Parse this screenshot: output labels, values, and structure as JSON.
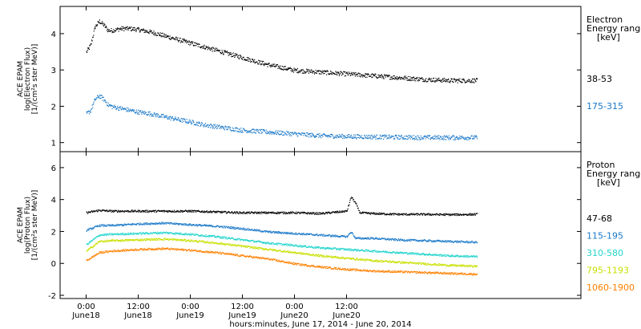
{
  "chart_data": [
    {
      "type": "scatter",
      "panel": "top",
      "ylabel_lines": [
        "ACE EPAM",
        "log(Electron Flux)",
        "[1/(cm²s ster MeV)]"
      ],
      "ylim": [
        0.75,
        4.75
      ],
      "yticks": [
        1,
        2,
        3,
        4
      ],
      "legend_title": [
        "Electron",
        "Energy range",
        "[keV]"
      ],
      "series": [
        {
          "name": "38-53",
          "color": "#000000",
          "x": [
            0,
            1,
            2,
            3,
            4,
            5,
            6,
            8,
            10,
            12,
            15,
            18,
            21,
            24,
            27,
            30,
            36,
            42,
            48,
            54,
            60,
            66,
            72,
            78,
            84,
            90
          ],
          "y": [
            3.5,
            3.7,
            4.2,
            4.35,
            4.25,
            4.1,
            4.1,
            4.15,
            4.15,
            4.12,
            4.05,
            3.95,
            3.85,
            3.75,
            3.65,
            3.55,
            3.35,
            3.15,
            3.0,
            2.95,
            2.9,
            2.85,
            2.8,
            2.75,
            2.72,
            2.72
          ]
        },
        {
          "name": "175-315",
          "color": "#1a78c8",
          "x": [
            0,
            1,
            2,
            3,
            4,
            5,
            6,
            8,
            10,
            12,
            15,
            18,
            21,
            24,
            27,
            30,
            36,
            42,
            48,
            54,
            60,
            66,
            72,
            78,
            84,
            90
          ],
          "y": [
            1.8,
            1.9,
            2.2,
            2.3,
            2.2,
            2.05,
            2.0,
            1.95,
            1.9,
            1.85,
            1.8,
            1.72,
            1.65,
            1.58,
            1.5,
            1.45,
            1.35,
            1.3,
            1.25,
            1.2,
            1.18,
            1.17,
            1.16,
            1.15,
            1.15,
            1.15
          ]
        }
      ]
    },
    {
      "type": "scatter",
      "panel": "bottom",
      "ylabel_lines": [
        "ACE EPAM",
        "log(Proton Flux)",
        "[1/(cm²s ster MeV)]"
      ],
      "ylim": [
        -2.2,
        7.0
      ],
      "yticks": [
        -2,
        0,
        2,
        4,
        6
      ],
      "legend_title": [
        "Proton",
        "Energy range",
        "[keV]"
      ],
      "series": [
        {
          "name": "47-68",
          "color": "#000000",
          "x": [
            0,
            3,
            6,
            12,
            18,
            24,
            30,
            36,
            42,
            48,
            54,
            60,
            61,
            62,
            63,
            66,
            72,
            78,
            84,
            90
          ],
          "y": [
            3.2,
            3.35,
            3.3,
            3.3,
            3.3,
            3.3,
            3.25,
            3.2,
            3.2,
            3.2,
            3.15,
            3.3,
            4.2,
            3.8,
            3.2,
            3.15,
            3.1,
            3.1,
            3.08,
            3.1
          ]
        },
        {
          "name": "115-195",
          "color": "#1a78c8",
          "x": [
            0,
            3,
            6,
            12,
            18,
            24,
            30,
            36,
            42,
            48,
            54,
            60,
            61,
            62,
            63,
            66,
            72,
            78,
            84,
            90
          ],
          "y": [
            2.1,
            2.4,
            2.4,
            2.5,
            2.55,
            2.45,
            2.35,
            2.2,
            2.0,
            1.9,
            1.8,
            1.7,
            2.0,
            1.6,
            1.6,
            1.6,
            1.5,
            1.45,
            1.4,
            1.35
          ]
        },
        {
          "name": "310-580",
          "color": "#22d4cc",
          "x": [
            0,
            3,
            6,
            12,
            18,
            24,
            30,
            36,
            42,
            48,
            54,
            60,
            66,
            72,
            78,
            84,
            90
          ],
          "y": [
            1.2,
            1.8,
            1.85,
            1.9,
            1.95,
            1.85,
            1.7,
            1.5,
            1.3,
            1.15,
            1.0,
            0.9,
            0.8,
            0.7,
            0.6,
            0.5,
            0.45
          ]
        },
        {
          "name": "795-1193",
          "color": "#c8e000",
          "x": [
            0,
            3,
            6,
            12,
            18,
            24,
            30,
            36,
            42,
            48,
            54,
            60,
            66,
            72,
            78,
            84,
            90
          ],
          "y": [
            0.8,
            1.4,
            1.45,
            1.5,
            1.55,
            1.45,
            1.3,
            1.1,
            0.9,
            0.7,
            0.5,
            0.35,
            0.2,
            0.1,
            0.0,
            -0.1,
            -0.15
          ]
        },
        {
          "name": "1060-1900",
          "color": "#ff8000",
          "x": [
            0,
            3,
            6,
            12,
            18,
            24,
            30,
            36,
            42,
            48,
            54,
            60,
            66,
            72,
            78,
            84,
            90
          ],
          "y": [
            0.2,
            0.7,
            0.8,
            0.9,
            0.95,
            0.85,
            0.7,
            0.5,
            0.3,
            0.0,
            -0.2,
            -0.35,
            -0.45,
            -0.5,
            -0.55,
            -0.6,
            -0.65
          ]
        }
      ]
    }
  ],
  "x_axis": {
    "xlim": [
      -6,
      114
    ],
    "ticks": [
      {
        "x": 0,
        "top": "0:00",
        "bottom": "June18"
      },
      {
        "x": 12,
        "top": "12:00",
        "bottom": "June18"
      },
      {
        "x": 24,
        "top": "0:00",
        "bottom": "June19"
      },
      {
        "x": 36,
        "top": "12:00",
        "bottom": "June19"
      },
      {
        "x": 48,
        "top": "0:00",
        "bottom": "June20"
      },
      {
        "x": 60,
        "top": "12:00",
        "bottom": "June20"
      }
    ],
    "label": "hours:minutes, June 17, 2014 - June 20, 2014"
  }
}
